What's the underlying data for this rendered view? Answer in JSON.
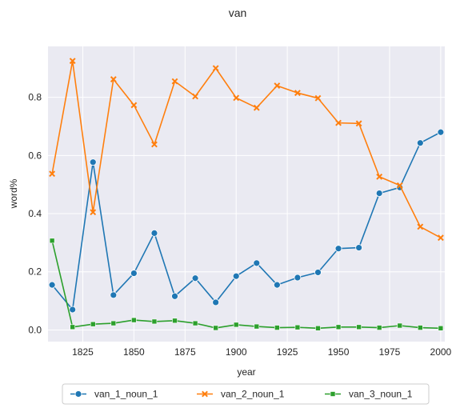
{
  "chart_data": {
    "type": "line",
    "title": "van",
    "xlabel": "year",
    "ylabel": "word%",
    "xlim": [
      1808,
      2002
    ],
    "ylim": [
      -0.04,
      0.975
    ],
    "xticks": [
      1825,
      1850,
      1875,
      1900,
      1925,
      1950,
      1975,
      2000
    ],
    "yticks": [
      0.0,
      0.2,
      0.4,
      0.6,
      0.8
    ],
    "ytick_labels": [
      "0.0",
      "0.2",
      "0.4",
      "0.6",
      "0.8"
    ],
    "grid": true,
    "legend_position": "bottom-center",
    "x": [
      1810,
      1820,
      1830,
      1840,
      1850,
      1860,
      1870,
      1880,
      1890,
      1900,
      1910,
      1920,
      1930,
      1940,
      1950,
      1960,
      1970,
      1980,
      1990,
      2000
    ],
    "series": [
      {
        "name": "van_1_noun_1",
        "color": "#1f77b4",
        "marker": "circle",
        "values": [
          0.155,
          0.07,
          0.577,
          0.12,
          0.195,
          0.333,
          0.116,
          0.178,
          0.095,
          0.185,
          0.23,
          0.155,
          0.18,
          0.198,
          0.28,
          0.283,
          0.47,
          0.49,
          0.643,
          0.68
        ]
      },
      {
        "name": "van_2_noun_1",
        "color": "#ff7f0e",
        "marker": "x",
        "values": [
          0.537,
          0.925,
          0.405,
          0.862,
          0.773,
          0.638,
          0.855,
          0.803,
          0.9,
          0.798,
          0.764,
          0.84,
          0.815,
          0.797,
          0.712,
          0.71,
          0.527,
          0.497,
          0.355,
          0.317
        ]
      },
      {
        "name": "van_3_noun_1",
        "color": "#2ca02c",
        "marker": "square",
        "values": [
          0.307,
          0.01,
          0.02,
          0.023,
          0.034,
          0.029,
          0.032,
          0.023,
          0.007,
          0.018,
          0.012,
          0.008,
          0.009,
          0.006,
          0.01,
          0.01,
          0.008,
          0.015,
          0.008,
          0.006
        ]
      }
    ]
  }
}
